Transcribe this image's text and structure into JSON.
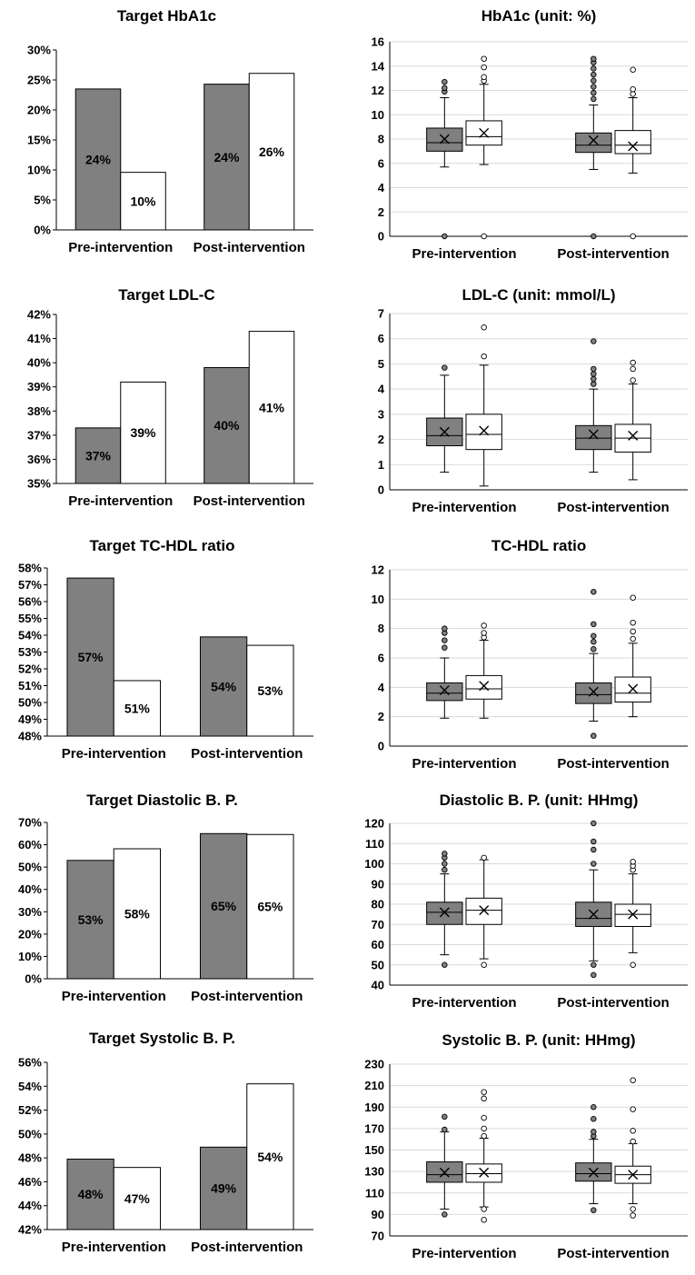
{
  "colors": {
    "pre": "#808080",
    "post": "#ffffff",
    "stroke": "#000000",
    "grid": "#d9d9d9"
  },
  "chart_data": [
    {
      "type": "bar",
      "title": "Target HbA1c",
      "categories": [
        "Pre-intervention",
        "Post-intervention"
      ],
      "series": [
        {
          "values": [
            23.5,
            24.3
          ],
          "labels": [
            "24%",
            "24%"
          ]
        },
        {
          "values": [
            9.6,
            26.1
          ],
          "labels": [
            "10%",
            "26%"
          ]
        }
      ],
      "ylim": [
        0,
        30
      ],
      "ystep": 5,
      "tick_suffix": "%",
      "grid": false
    },
    {
      "type": "box",
      "title": "HbA1c (unit: %)",
      "categories": [
        "Pre-intervention",
        "Post-intervention"
      ],
      "ylim": [
        0,
        16
      ],
      "ystep": 2,
      "grid": true,
      "boxes": [
        {
          "category": 0,
          "series": 0,
          "min": 5.7,
          "q1": 7.0,
          "median": 7.7,
          "q3": 8.9,
          "max": 11.4,
          "mean": 8.0,
          "outliers": [
            11.9,
            12.2,
            12.7,
            0
          ]
        },
        {
          "category": 0,
          "series": 1,
          "min": 5.9,
          "q1": 7.5,
          "median": 8.2,
          "q3": 9.5,
          "max": 12.5,
          "mean": 8.5,
          "outliers": [
            12.8,
            13.1,
            13.9,
            14.6,
            0
          ]
        },
        {
          "category": 1,
          "series": 0,
          "min": 5.5,
          "q1": 6.9,
          "median": 7.5,
          "q3": 8.5,
          "max": 10.8,
          "mean": 7.9,
          "outliers": [
            11.3,
            11.8,
            12.3,
            12.8,
            13.3,
            13.8,
            14.3,
            14.6,
            0
          ]
        },
        {
          "category": 1,
          "series": 1,
          "min": 5.2,
          "q1": 6.8,
          "median": 7.5,
          "q3": 8.7,
          "max": 11.4,
          "mean": 7.4,
          "outliers": [
            11.7,
            12.1,
            13.7,
            0
          ]
        }
      ]
    },
    {
      "type": "bar",
      "title": "Target LDL-C",
      "categories": [
        "Pre-intervention",
        "Post-intervention"
      ],
      "series": [
        {
          "values": [
            37.3,
            39.8
          ],
          "labels": [
            "37%",
            "40%"
          ]
        },
        {
          "values": [
            39.2,
            41.3
          ],
          "labels": [
            "39%",
            "41%"
          ]
        }
      ],
      "ylim": [
        35,
        42
      ],
      "ystep": 1,
      "tick_suffix": "%",
      "grid": false
    },
    {
      "type": "box",
      "title": "LDL-C (unit: mmol/L)",
      "categories": [
        "Pre-intervention",
        "Post-intervention"
      ],
      "ylim": [
        0,
        7
      ],
      "ystep": 1,
      "grid": true,
      "boxes": [
        {
          "category": 0,
          "series": 0,
          "min": 0.7,
          "q1": 1.75,
          "median": 2.15,
          "q3": 2.85,
          "max": 4.55,
          "mean": 2.3,
          "outliers": [
            4.85
          ]
        },
        {
          "category": 0,
          "series": 1,
          "min": 0.15,
          "q1": 1.6,
          "median": 2.2,
          "q3": 3.0,
          "max": 4.95,
          "mean": 2.35,
          "outliers": [
            5.3,
            6.45
          ]
        },
        {
          "category": 1,
          "series": 0,
          "min": 0.7,
          "q1": 1.6,
          "median": 2.05,
          "q3": 2.55,
          "max": 4.0,
          "mean": 2.2,
          "outliers": [
            4.2,
            4.4,
            4.6,
            4.8,
            5.9
          ]
        },
        {
          "category": 1,
          "series": 1,
          "min": 0.4,
          "q1": 1.5,
          "median": 2.05,
          "q3": 2.6,
          "max": 4.2,
          "mean": 2.15,
          "outliers": [
            4.35,
            4.8,
            5.05
          ]
        }
      ]
    },
    {
      "type": "bar",
      "title": "Target TC-HDL ratio",
      "categories": [
        "Pre-intervention",
        "Post-intervention"
      ],
      "series": [
        {
          "values": [
            57.4,
            53.9
          ],
          "labels": [
            "57%",
            "54%"
          ]
        },
        {
          "values": [
            51.3,
            53.4
          ],
          "labels": [
            "51%",
            "53%"
          ]
        }
      ],
      "ylim": [
        48,
        58
      ],
      "ystep": 1,
      "tick_suffix": "%",
      "grid": false
    },
    {
      "type": "box",
      "title": "TC-HDL ratio",
      "categories": [
        "Pre-intervention",
        "Post-intervention"
      ],
      "ylim": [
        0,
        12
      ],
      "ystep": 2,
      "grid": true,
      "boxes": [
        {
          "category": 0,
          "series": 0,
          "min": 1.9,
          "q1": 3.1,
          "median": 3.6,
          "q3": 4.3,
          "max": 6.0,
          "mean": 3.8,
          "outliers": [
            6.7,
            7.2,
            7.7,
            8.0
          ]
        },
        {
          "category": 0,
          "series": 1,
          "min": 1.9,
          "q1": 3.2,
          "median": 3.9,
          "q3": 4.8,
          "max": 7.2,
          "mean": 4.1,
          "outliers": [
            7.4,
            7.7,
            8.2
          ]
        },
        {
          "category": 1,
          "series": 0,
          "min": 1.7,
          "q1": 2.9,
          "median": 3.5,
          "q3": 4.3,
          "max": 6.3,
          "mean": 3.7,
          "outliers": [
            0.7,
            6.6,
            7.1,
            7.5,
            8.3,
            10.5
          ]
        },
        {
          "category": 1,
          "series": 1,
          "min": 2.0,
          "q1": 3.0,
          "median": 3.6,
          "q3": 4.7,
          "max": 7.0,
          "mean": 3.9,
          "outliers": [
            7.3,
            7.8,
            8.4,
            10.1
          ]
        }
      ]
    },
    {
      "type": "bar",
      "title": "Target Diastolic B. P.",
      "categories": [
        "Pre-intervention",
        "Post-intervention"
      ],
      "series": [
        {
          "values": [
            53.0,
            65.0
          ],
          "labels": [
            "53%",
            "65%"
          ]
        },
        {
          "values": [
            58.2,
            64.6
          ],
          "labels": [
            "58%",
            "65%"
          ]
        }
      ],
      "ylim": [
        0,
        70
      ],
      "ystep": 10,
      "tick_suffix": "%",
      "grid": false
    },
    {
      "type": "box",
      "title": "Diastolic B. P. (unit: HHmg)",
      "categories": [
        "Pre-intervention",
        "Post-intervention"
      ],
      "ylim": [
        40,
        120
      ],
      "ystep": 10,
      "grid": true,
      "boxes": [
        {
          "category": 0,
          "series": 0,
          "min": 55,
          "q1": 70,
          "median": 76,
          "q3": 81,
          "max": 95,
          "mean": 76,
          "outliers": [
            50,
            97,
            100,
            103,
            105
          ]
        },
        {
          "category": 0,
          "series": 1,
          "min": 53,
          "q1": 70,
          "median": 77,
          "q3": 83,
          "max": 102,
          "mean": 77,
          "outliers": [
            50,
            103
          ]
        },
        {
          "category": 1,
          "series": 0,
          "min": 52,
          "q1": 69,
          "median": 73,
          "q3": 81,
          "max": 97,
          "mean": 75,
          "outliers": [
            45,
            50,
            100,
            107,
            111,
            120
          ]
        },
        {
          "category": 1,
          "series": 1,
          "min": 56,
          "q1": 69,
          "median": 75,
          "q3": 80,
          "max": 95,
          "mean": 75,
          "outliers": [
            50,
            97,
            99,
            101
          ]
        }
      ]
    },
    {
      "type": "bar",
      "title": "Target Systolic B. P.",
      "categories": [
        "Pre-intervention",
        "Post-intervention"
      ],
      "series": [
        {
          "values": [
            47.9,
            48.9
          ],
          "labels": [
            "48%",
            "49%"
          ]
        },
        {
          "values": [
            47.2,
            54.2
          ],
          "labels": [
            "47%",
            "54%"
          ]
        }
      ],
      "ylim": [
        42,
        56
      ],
      "ystep": 2,
      "tick_suffix": "%",
      "grid": false
    },
    {
      "type": "box",
      "title": "Systolic B. P. (unit: HHmg)",
      "categories": [
        "Pre-intervention",
        "Post-intervention"
      ],
      "ylim": [
        70,
        230
      ],
      "ystep": 20,
      "yticks": [
        70,
        90,
        110,
        130,
        150,
        170,
        190,
        210,
        230
      ],
      "grid": true,
      "boxes": [
        {
          "category": 0,
          "series": 0,
          "min": 95,
          "q1": 120,
          "median": 127,
          "q3": 139,
          "max": 167,
          "mean": 129,
          "outliers": [
            90,
            169,
            181
          ]
        },
        {
          "category": 0,
          "series": 1,
          "min": 97,
          "q1": 120,
          "median": 128,
          "q3": 137,
          "max": 161,
          "mean": 129,
          "outliers": [
            85,
            95,
            163,
            170,
            180,
            198,
            204
          ]
        },
        {
          "category": 1,
          "series": 0,
          "min": 100,
          "q1": 121,
          "median": 128,
          "q3": 138,
          "max": 160,
          "mean": 129,
          "outliers": [
            94,
            163,
            167,
            179,
            190
          ]
        },
        {
          "category": 1,
          "series": 1,
          "min": 100,
          "q1": 119,
          "median": 127,
          "q3": 135,
          "max": 156,
          "mean": 127,
          "outliers": [
            89,
            95,
            158,
            168,
            188,
            215
          ]
        }
      ]
    }
  ]
}
